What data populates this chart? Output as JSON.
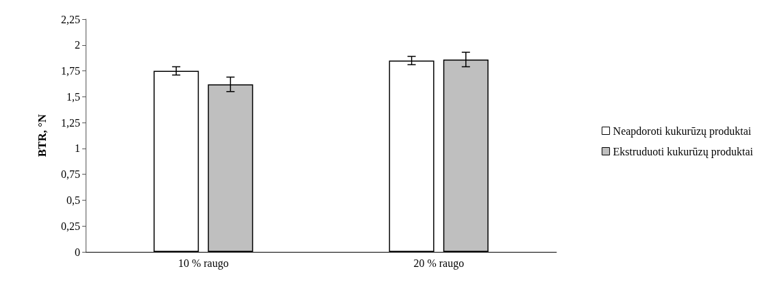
{
  "chart_data": {
    "type": "bar",
    "ylabel": "BTR, °N",
    "categories": [
      "10 % raugo",
      "20 % raugo"
    ],
    "series": [
      {
        "name": "Neapdoroti kukurūzų produktai",
        "color": "#ffffff",
        "values": [
          1.75,
          1.85
        ],
        "errors": [
          0.04,
          0.04
        ]
      },
      {
        "name": "Ekstruduoti kukurūzų produktai",
        "color": "#bfbfbf",
        "values": [
          1.62,
          1.86
        ],
        "errors": [
          0.07,
          0.07
        ]
      }
    ],
    "ylim": [
      0,
      2.25
    ],
    "yticks": [
      {
        "value": 0,
        "label": "0"
      },
      {
        "value": 0.25,
        "label": "0,25"
      },
      {
        "value": 0.5,
        "label": "0,5"
      },
      {
        "value": 0.75,
        "label": "0,75"
      },
      {
        "value": 1,
        "label": "1"
      },
      {
        "value": 1.25,
        "label": "1,25"
      },
      {
        "value": 1.5,
        "label": "1,5"
      },
      {
        "value": 1.75,
        "label": "1,75"
      },
      {
        "value": 2,
        "label": "2"
      },
      {
        "value": 2.25,
        "label": "2,25"
      }
    ],
    "grid": false,
    "legend": "right"
  }
}
